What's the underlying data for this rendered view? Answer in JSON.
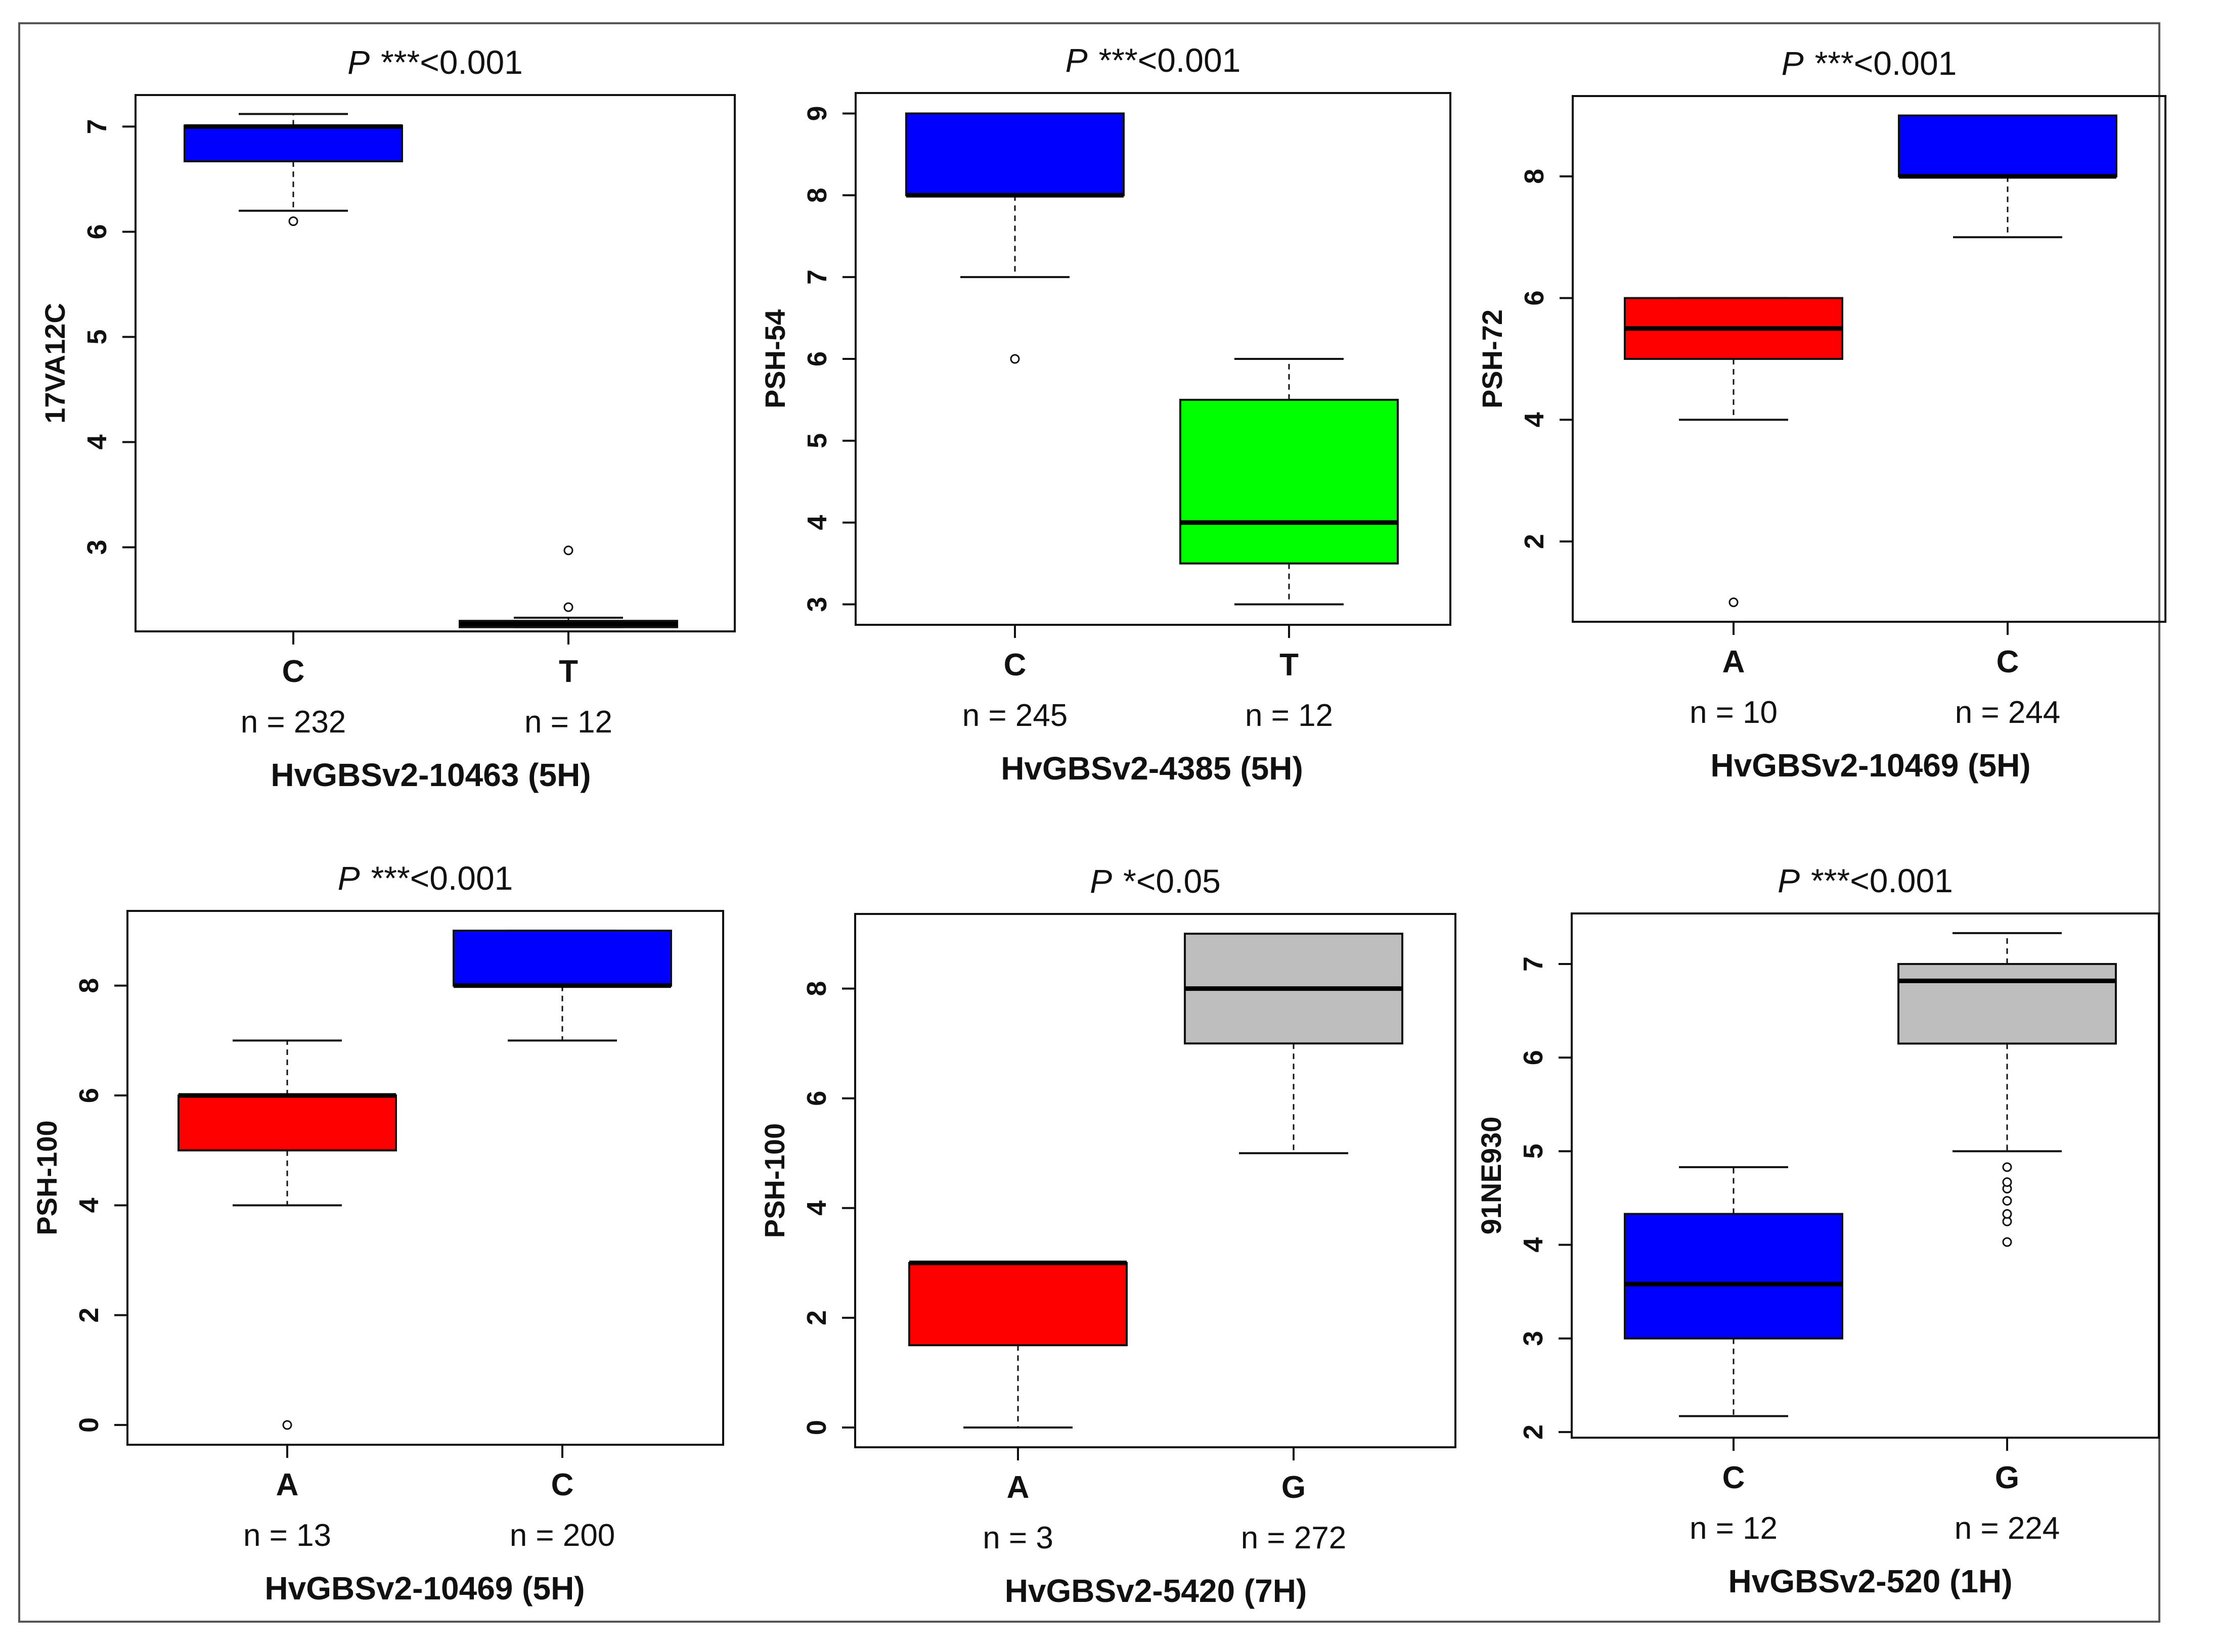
{
  "colors": {
    "blue": "#0000FF",
    "green": "#00FF00",
    "red": "#FF0000",
    "grey": "#BEBEBE"
  },
  "chart_data": [
    {
      "type": "boxplot",
      "title": {
        "p": "P",
        "stars": "***",
        "sig": "<0.001"
      },
      "ylabel": "17VA12C",
      "xlabel": "HvGBSv2-10463 (5H)",
      "ylim": [
        2.2,
        7.3
      ],
      "yticks": [
        3,
        4,
        5,
        6,
        7
      ],
      "groups": [
        {
          "category": "C",
          "n_label": "n = 232",
          "color": "blue",
          "min": 6.2,
          "q1": 6.67,
          "median": 7.0,
          "q3": 7.01,
          "max": 7.12,
          "outliers": [
            6.1
          ]
        },
        {
          "category": "T",
          "n_label": "n = 12",
          "color": "green",
          "min": 2.24,
          "q1": 2.24,
          "median": 2.27,
          "q3": 2.3,
          "max": 2.33,
          "outliers": [
            2.43,
            2.97
          ]
        }
      ]
    },
    {
      "type": "boxplot",
      "title": {
        "p": "P",
        "stars": "***",
        "sig": "<0.001"
      },
      "ylabel": "PSH-54",
      "xlabel": "HvGBSv2-4385 (5H)",
      "ylim": [
        2.75,
        9.25
      ],
      "yticks": [
        3,
        4,
        5,
        6,
        7,
        8,
        9
      ],
      "groups": [
        {
          "category": "C",
          "n_label": "n = 245",
          "color": "blue",
          "min": 7,
          "q1": 8,
          "median": 8,
          "q3": 9,
          "max": 9,
          "outliers": [
            6
          ]
        },
        {
          "category": "T",
          "n_label": "n = 12",
          "color": "green",
          "min": 3,
          "q1": 3.5,
          "median": 4,
          "q3": 5.5,
          "max": 6,
          "outliers": []
        }
      ]
    },
    {
      "type": "boxplot",
      "title": {
        "p": "P",
        "stars": "***",
        "sig": "<0.001"
      },
      "ylabel": "PSH-72",
      "xlabel": "HvGBSv2-10469 (5H)",
      "ylim": [
        0.68,
        9.32
      ],
      "yticks": [
        2,
        4,
        6,
        8
      ],
      "groups": [
        {
          "category": "A",
          "n_label": "n = 10",
          "color": "red",
          "min": 4,
          "q1": 5,
          "median": 5.5,
          "q3": 6,
          "max": 6,
          "outliers": [
            1
          ]
        },
        {
          "category": "C",
          "n_label": "n = 244",
          "color": "blue",
          "min": 7,
          "q1": 8,
          "median": 8,
          "q3": 9,
          "max": 9,
          "outliers": []
        }
      ]
    },
    {
      "type": "boxplot",
      "title": {
        "p": "P",
        "stars": "***",
        "sig": "<0.001"
      },
      "ylabel": "PSH-100",
      "xlabel": "HvGBSv2-10469 (5H)",
      "ylim": [
        -0.36,
        9.36
      ],
      "yticks": [
        0,
        2,
        4,
        6,
        8
      ],
      "groups": [
        {
          "category": "A",
          "n_label": "n = 13",
          "color": "red",
          "min": 4,
          "q1": 5,
          "median": 6,
          "q3": 6,
          "max": 7,
          "outliers": [
            0
          ]
        },
        {
          "category": "C",
          "n_label": "n = 200",
          "color": "blue",
          "min": 7,
          "q1": 8,
          "median": 8,
          "q3": 9,
          "max": 9,
          "outliers": []
        }
      ]
    },
    {
      "type": "boxplot",
      "title": {
        "p": "P",
        "stars": "*",
        "sig": "<0.05"
      },
      "ylabel": "PSH-100",
      "xlabel": "HvGBSv2-5420 (7H)",
      "ylim": [
        -0.36,
        9.36
      ],
      "yticks": [
        0,
        2,
        4,
        6,
        8
      ],
      "groups": [
        {
          "category": "A",
          "n_label": "n = 3",
          "color": "red",
          "min": 0,
          "q1": 1.5,
          "median": 3,
          "q3": 3,
          "max": 3,
          "outliers": []
        },
        {
          "category": "G",
          "n_label": "n = 272",
          "color": "grey",
          "min": 5,
          "q1": 7,
          "median": 8,
          "q3": 9,
          "max": 9,
          "outliers": []
        }
      ]
    },
    {
      "type": "boxplot",
      "title": {
        "p": "P",
        "stars": "***",
        "sig": "<0.001"
      },
      "ylabel": "91NE930",
      "xlabel": "HvGBSv2-520 (1H)",
      "ylim": [
        1.94,
        7.54
      ],
      "yticks": [
        2,
        3,
        4,
        5,
        6,
        7
      ],
      "groups": [
        {
          "category": "C",
          "n_label": "n = 12",
          "color": "blue",
          "min": 2.17,
          "q1": 3.0,
          "median": 3.58,
          "q3": 4.33,
          "max": 4.83,
          "outliers": []
        },
        {
          "category": "G",
          "n_label": "n = 224",
          "color": "grey",
          "min": 5.0,
          "q1": 6.15,
          "median": 6.82,
          "q3": 7.0,
          "max": 7.33,
          "outliers": [
            4.03,
            4.25,
            4.33,
            4.47,
            4.6,
            4.67,
            4.83
          ]
        }
      ]
    }
  ]
}
